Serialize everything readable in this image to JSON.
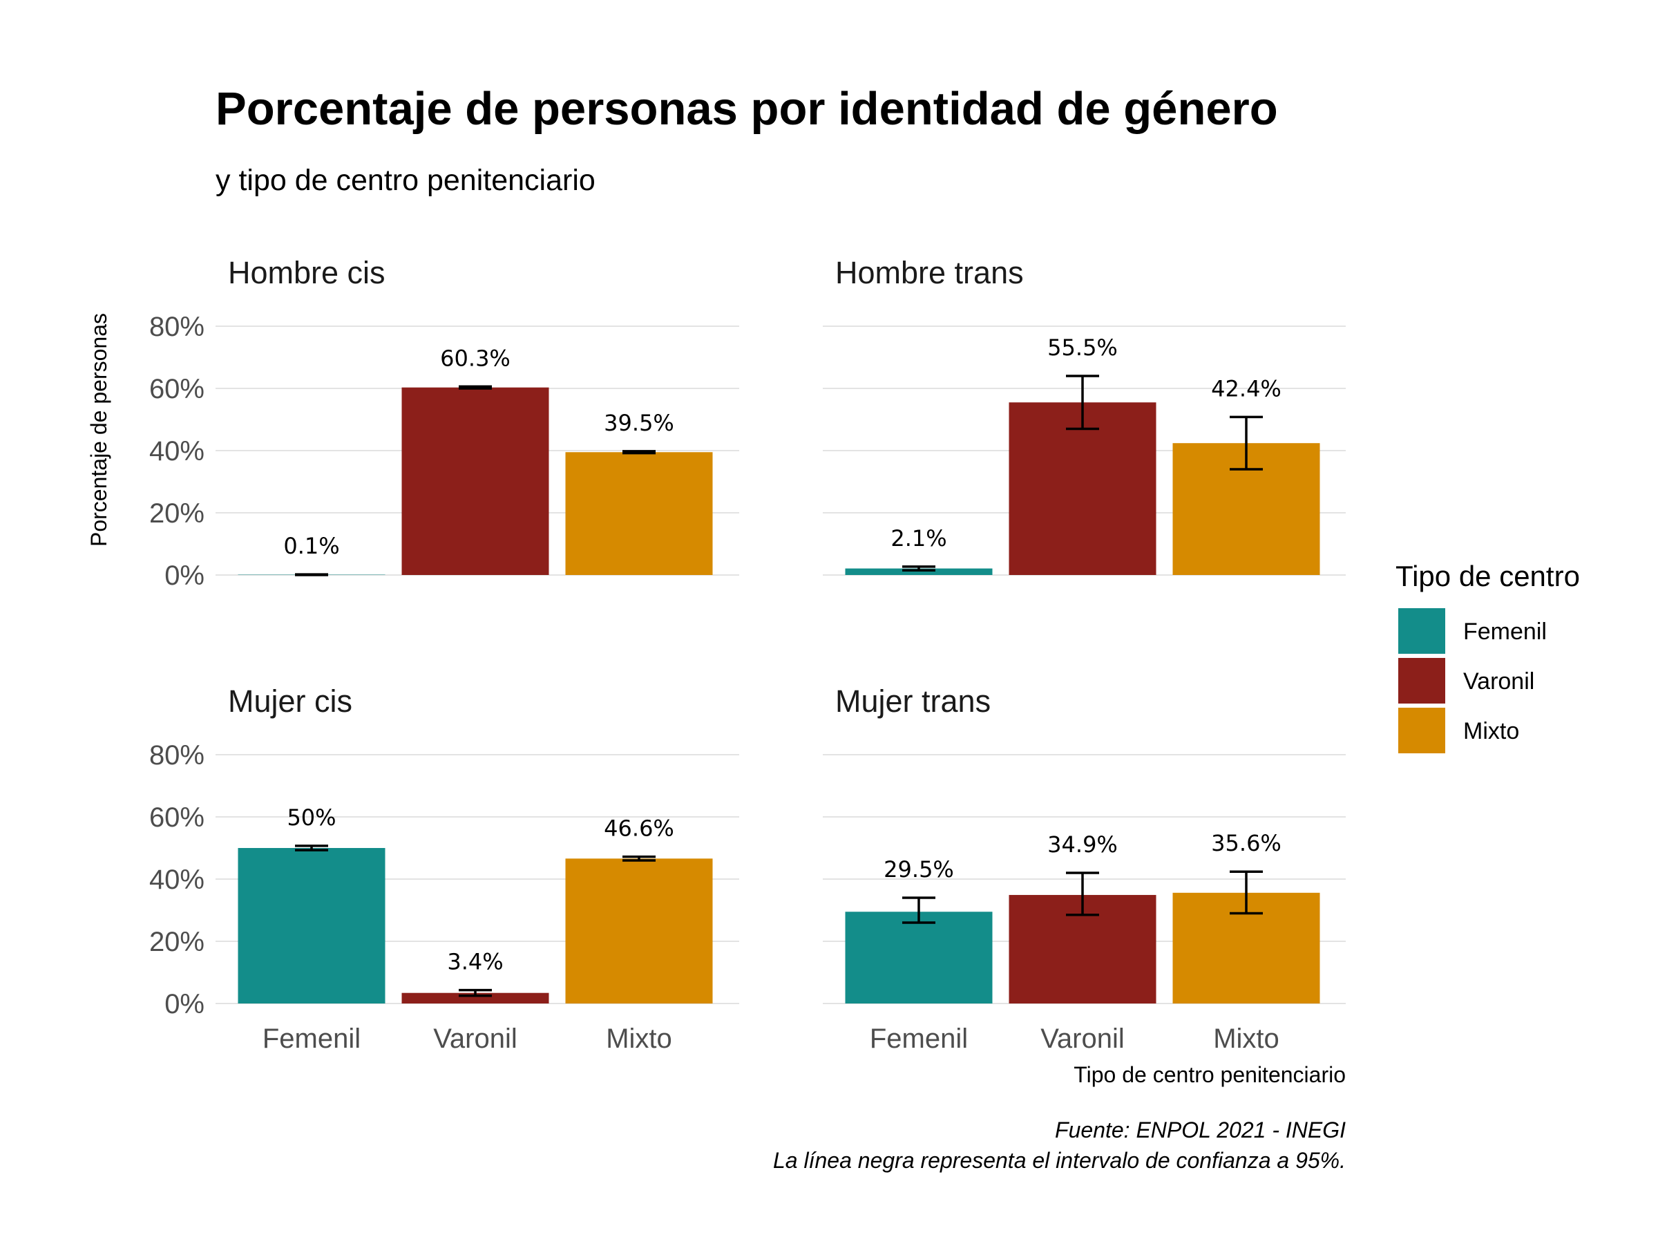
{
  "chart_data": {
    "type": "bar",
    "title": "Porcentaje de personas por identidad de género",
    "subtitle": "y tipo de centro penitenciario",
    "xlabel": "Tipo de centro penitenciario",
    "ylabel": "Porcentaje de personas",
    "ylim": [
      0,
      0.8
    ],
    "yticks": [
      "0%",
      "20%",
      "40%",
      "60%",
      "80%"
    ],
    "categories": [
      "Femenil",
      "Varonil",
      "Mixto"
    ],
    "legend": {
      "title": "Tipo de centro",
      "position": "right",
      "items": [
        {
          "label": "Femenil",
          "color": "#138D8A"
        },
        {
          "label": "Varonil",
          "color": "#8C1F1A"
        },
        {
          "label": "Mixto",
          "color": "#D68A00"
        }
      ]
    },
    "grid": true,
    "panels": [
      {
        "title": "Hombre cis",
        "values": [
          0.001,
          0.603,
          0.395
        ],
        "labels": [
          "0.1%",
          "60.3%",
          "39.5%"
        ],
        "ci_low": [
          0.0,
          0.6,
          0.392
        ],
        "ci_high": [
          0.002,
          0.606,
          0.398
        ]
      },
      {
        "title": "Hombre trans",
        "values": [
          0.021,
          0.555,
          0.424
        ],
        "labels": [
          "2.1%",
          "55.5%",
          "42.4%"
        ],
        "ci_low": [
          0.015,
          0.47,
          0.34
        ],
        "ci_high": [
          0.027,
          0.64,
          0.508
        ]
      },
      {
        "title": "Mujer cis",
        "values": [
          0.5,
          0.034,
          0.466
        ],
        "labels": [
          "50%",
          "3.4%",
          "46.6%"
        ],
        "ci_low": [
          0.493,
          0.025,
          0.46
        ],
        "ci_high": [
          0.507,
          0.043,
          0.472
        ]
      },
      {
        "title": "Mujer trans",
        "values": [
          0.295,
          0.349,
          0.356
        ],
        "labels": [
          "29.5%",
          "34.9%",
          "35.6%"
        ],
        "ci_low": [
          0.26,
          0.285,
          0.29
        ],
        "ci_high": [
          0.34,
          0.42,
          0.424
        ]
      }
    ],
    "caption": [
      "Fuente: ENPOL 2021 - INEGI",
      "La línea negra representa el intervalo de confianza a 95%."
    ]
  }
}
